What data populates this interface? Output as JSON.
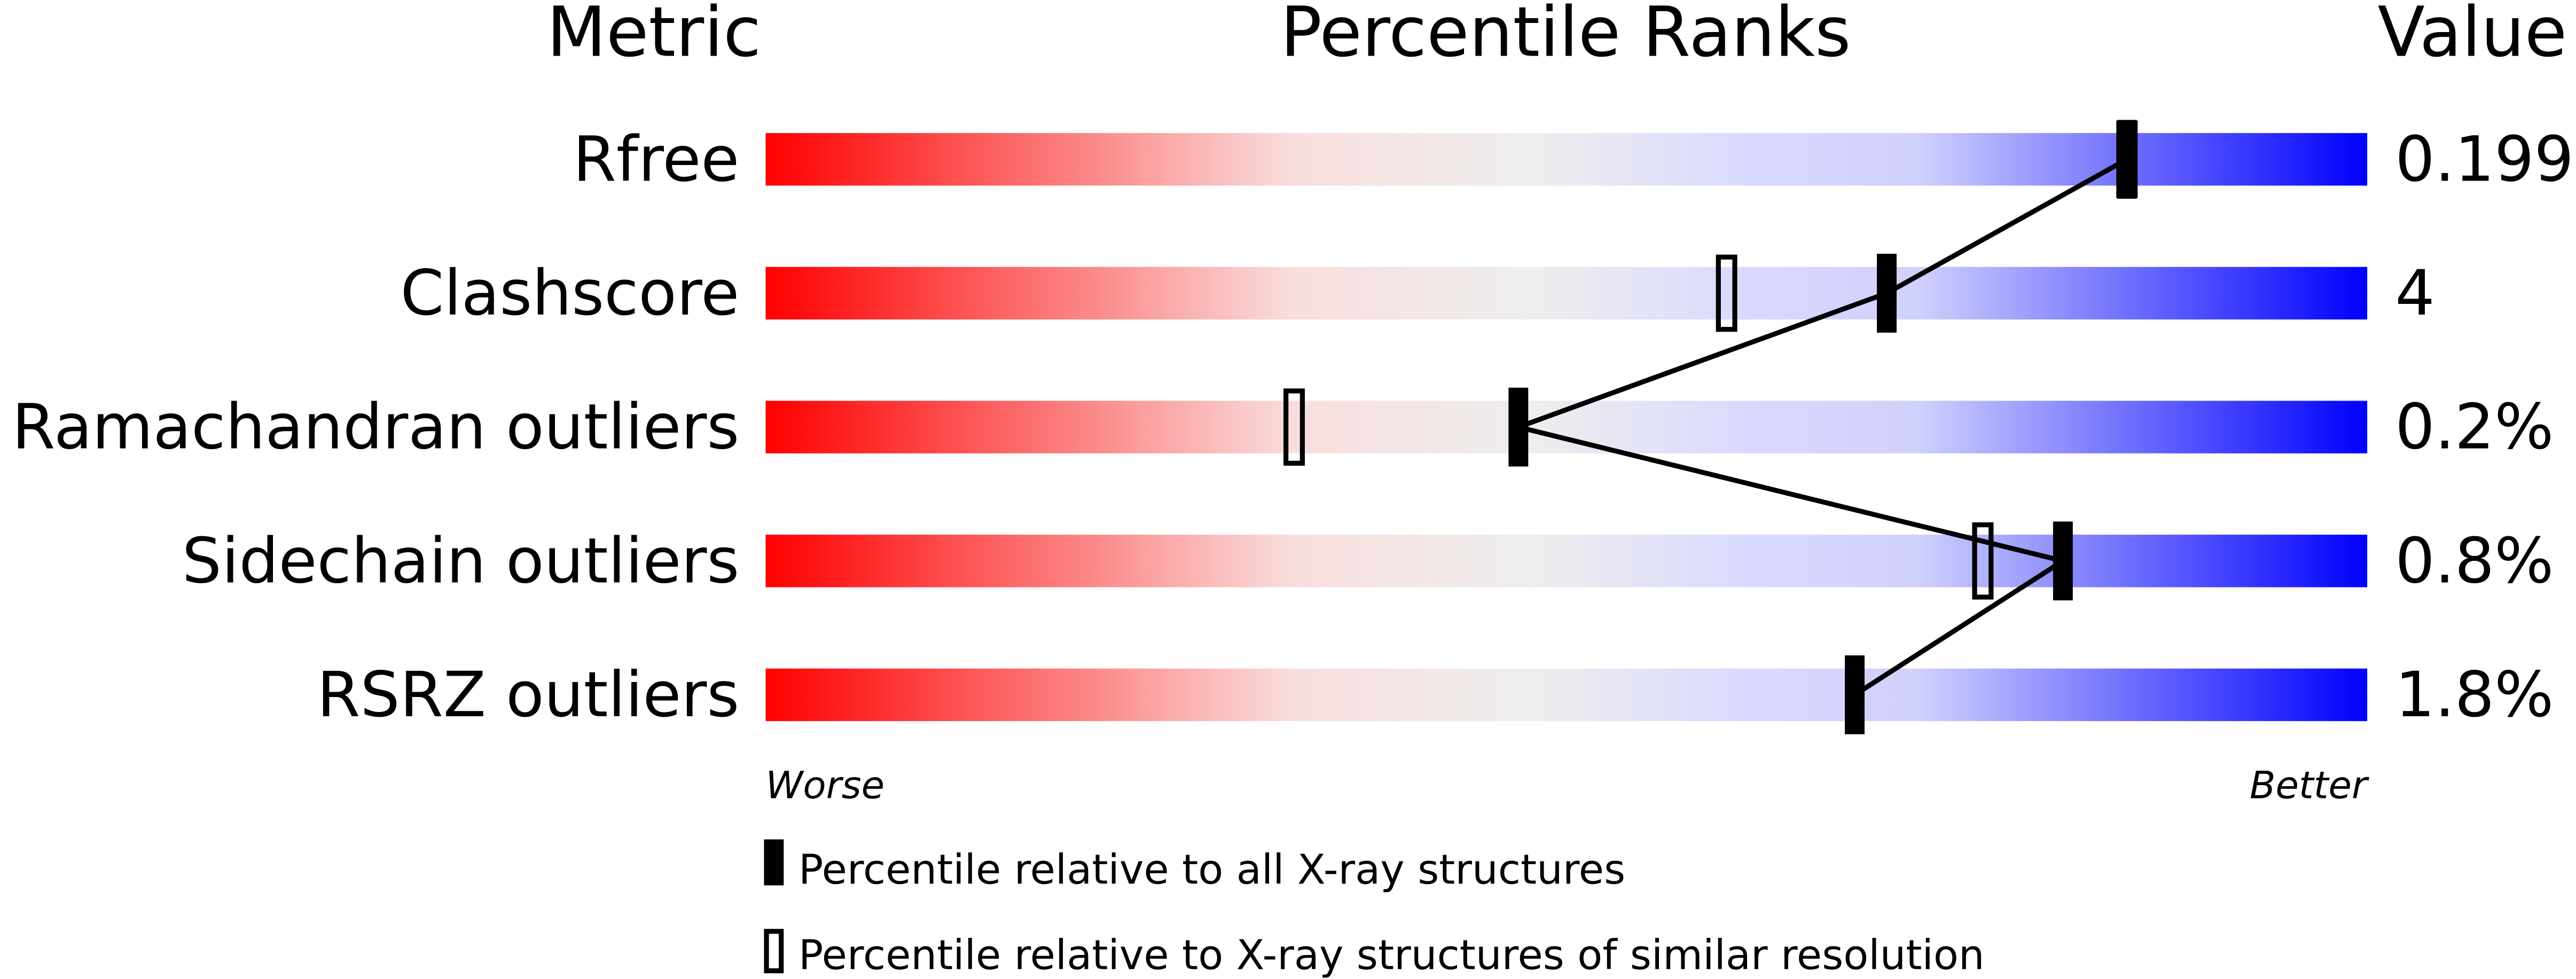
{
  "chart_data": {
    "type": "percentile-slider",
    "headers": {
      "metric": "Metric",
      "ranks": "Percentile Ranks",
      "value": "Value"
    },
    "xlim": [
      0,
      100
    ],
    "gradient_colors": [
      "#ff0000",
      "#f9dede",
      "#eeeeee",
      "#d8d8ff",
      "#0000ff"
    ],
    "axis_labels": {
      "left": "Worse",
      "right": "Better"
    },
    "metrics": [
      {
        "label": "Rfree",
        "value": "0.199",
        "percentile_all": 85,
        "percentile_similar": 85
      },
      {
        "label": "Clashscore",
        "value": "4",
        "percentile_all": 70,
        "percentile_similar": 60
      },
      {
        "label": "Ramachandran outliers",
        "value": "0.2%",
        "percentile_all": 47,
        "percentile_similar": 33
      },
      {
        "label": "Sidechain outliers",
        "value": "0.8%",
        "percentile_all": 81,
        "percentile_similar": 76
      },
      {
        "label": "RSRZ outliers",
        "value": "1.8%",
        "percentile_all": 68,
        "percentile_similar": null
      }
    ],
    "legend": {
      "all": "Percentile relative to all X-ray structures",
      "similar": "Percentile relative to X-ray structures of similar resolution"
    }
  }
}
